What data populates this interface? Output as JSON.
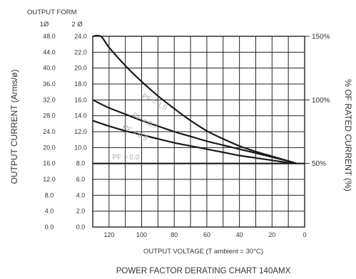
{
  "chart_data": {
    "type": "line",
    "title": "POWER FACTOR DERATING CHART 140AMX",
    "xlabel": "OUTPUT VOLTAGE (T ambient = 30°C)",
    "ylabel": "OUTPUT CURRENT (Arms/ø)",
    "y2label": "% OF RATED CURRENT (%)",
    "output_form_label": "OUTPUT FORM",
    "phase_headers": [
      "1Ø",
      "2 Ø"
    ],
    "xlim": [
      130,
      0
    ],
    "x_tick_values": [
      120,
      100,
      80,
      60,
      40,
      20,
      0
    ],
    "x_tick_labels": [
      "120",
      "100",
      "80",
      "60",
      "40",
      "20",
      "0"
    ],
    "y_left_1ph_ticks": [
      "0.0",
      "4.0",
      "8.0",
      "12.0",
      "16.0",
      "20.0",
      "24.0",
      "28.0",
      "32.0",
      "36.0",
      "40.0",
      "44.0",
      "48.0"
    ],
    "y_left_2ph_ticks": [
      "0.0",
      "2.0",
      "4.0",
      "6.0",
      "8.0",
      "10.0",
      "12.0",
      "14.0",
      "16.0",
      "18.0",
      "20.0",
      "22.0",
      "24.0"
    ],
    "ylim_2ph": [
      0,
      24
    ],
    "y_right_ticks": [
      {
        "value": 24.0,
        "label": "150%"
      },
      {
        "value": 16.0,
        "label": "100%"
      },
      {
        "value": 8.0,
        "label": "50%"
      }
    ],
    "grid": true,
    "series": [
      {
        "name": "PF = 1.0",
        "label_at": [
          100,
          16.3
        ],
        "x": [
          130,
          125,
          120,
          110,
          100,
          90,
          80,
          70,
          60,
          50,
          40,
          30,
          20,
          10,
          5
        ],
        "y": [
          24.0,
          24.0,
          22.6,
          20.3,
          18.3,
          16.5,
          14.9,
          13.4,
          12.1,
          11.1,
          10.2,
          9.5,
          8.9,
          8.3,
          8.0
        ]
      },
      {
        "name": "PF = 0.7",
        "label_at": [
          106,
          13.9
        ],
        "x": [
          130,
          120,
          110,
          100,
          90,
          80,
          70,
          60,
          50,
          40,
          30,
          20,
          10,
          5
        ],
        "y": [
          16.0,
          15.0,
          14.2,
          13.4,
          12.7,
          12.0,
          11.4,
          10.8,
          10.3,
          9.8,
          9.3,
          8.8,
          8.3,
          8.0
        ]
      },
      {
        "name": "PF = 0.5",
        "label_at": [
          112,
          12.4
        ],
        "x": [
          130,
          120,
          110,
          100,
          90,
          80,
          70,
          60,
          50,
          40,
          30,
          20,
          10,
          5
        ],
        "y": [
          13.4,
          12.7,
          12.1,
          11.6,
          11.1,
          10.6,
          10.2,
          9.8,
          9.4,
          9.0,
          8.7,
          8.4,
          8.1,
          8.0
        ]
      },
      {
        "name": "PF = 0.0",
        "label_at": [
          118,
          8.5
        ],
        "x": [
          130,
          0
        ],
        "y": [
          8.0,
          8.0
        ]
      }
    ]
  }
}
